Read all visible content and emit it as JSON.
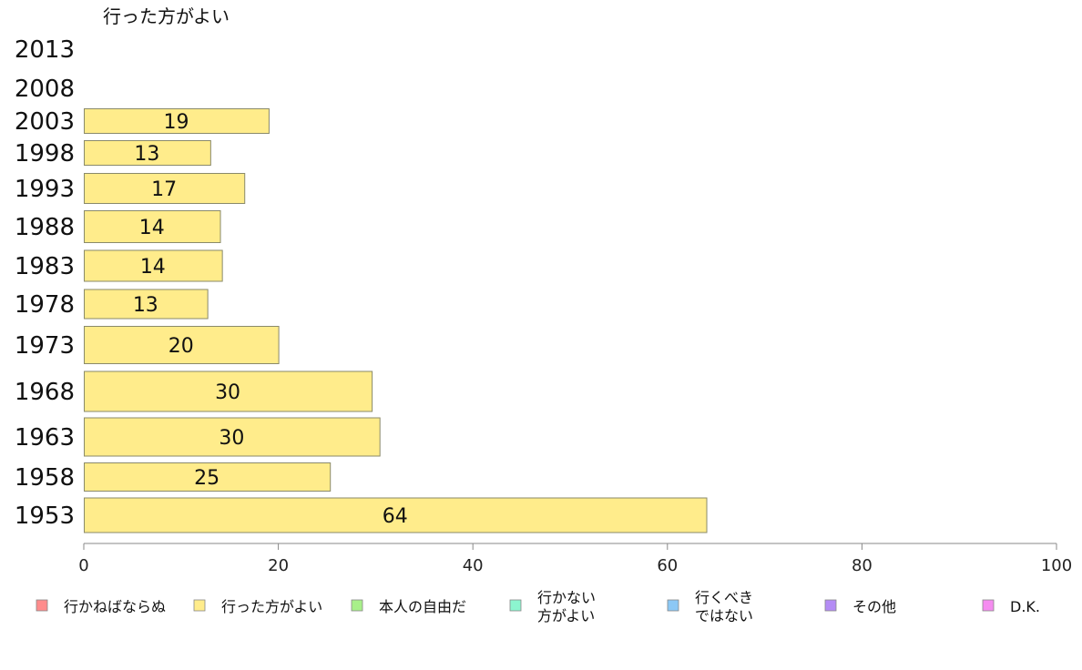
{
  "chart_data": {
    "type": "bar",
    "orientation": "horizontal",
    "title": "行った方がよい",
    "categories": [
      "2013",
      "2008",
      "2003",
      "1998",
      "1993",
      "1988",
      "1983",
      "1978",
      "1973",
      "1968",
      "1963",
      "1958",
      "1953"
    ],
    "values": [
      null,
      null,
      19,
      13,
      16.5,
      14,
      14.2,
      12.7,
      20,
      29.6,
      30.4,
      25.3,
      64
    ],
    "data_labels": [
      "",
      "",
      "19",
      "13",
      "17",
      "14",
      "14",
      "13",
      "20",
      "30",
      "30",
      "25",
      "64"
    ],
    "series_color": "#ffec8b",
    "xlim": [
      0,
      100
    ],
    "x_ticks": [
      "0",
      "20",
      "40",
      "60",
      "80",
      "100"
    ],
    "grid": false,
    "legend_position": "bottom",
    "legend": [
      {
        "label": "行かねばならぬ",
        "color": "#ff8c8c"
      },
      {
        "label": "行った方がよい",
        "color": "#ffec8b"
      },
      {
        "label": "本人の自由だ",
        "color": "#a8f08a"
      },
      {
        "label": "行かない\n方がよい",
        "color": "#8cf5cf"
      },
      {
        "label": "行くべき\nではない",
        "color": "#8cc8f5"
      },
      {
        "label": "その他",
        "color": "#b48cf5"
      },
      {
        "label": "D.K.",
        "color": "#f58cf0"
      }
    ]
  }
}
